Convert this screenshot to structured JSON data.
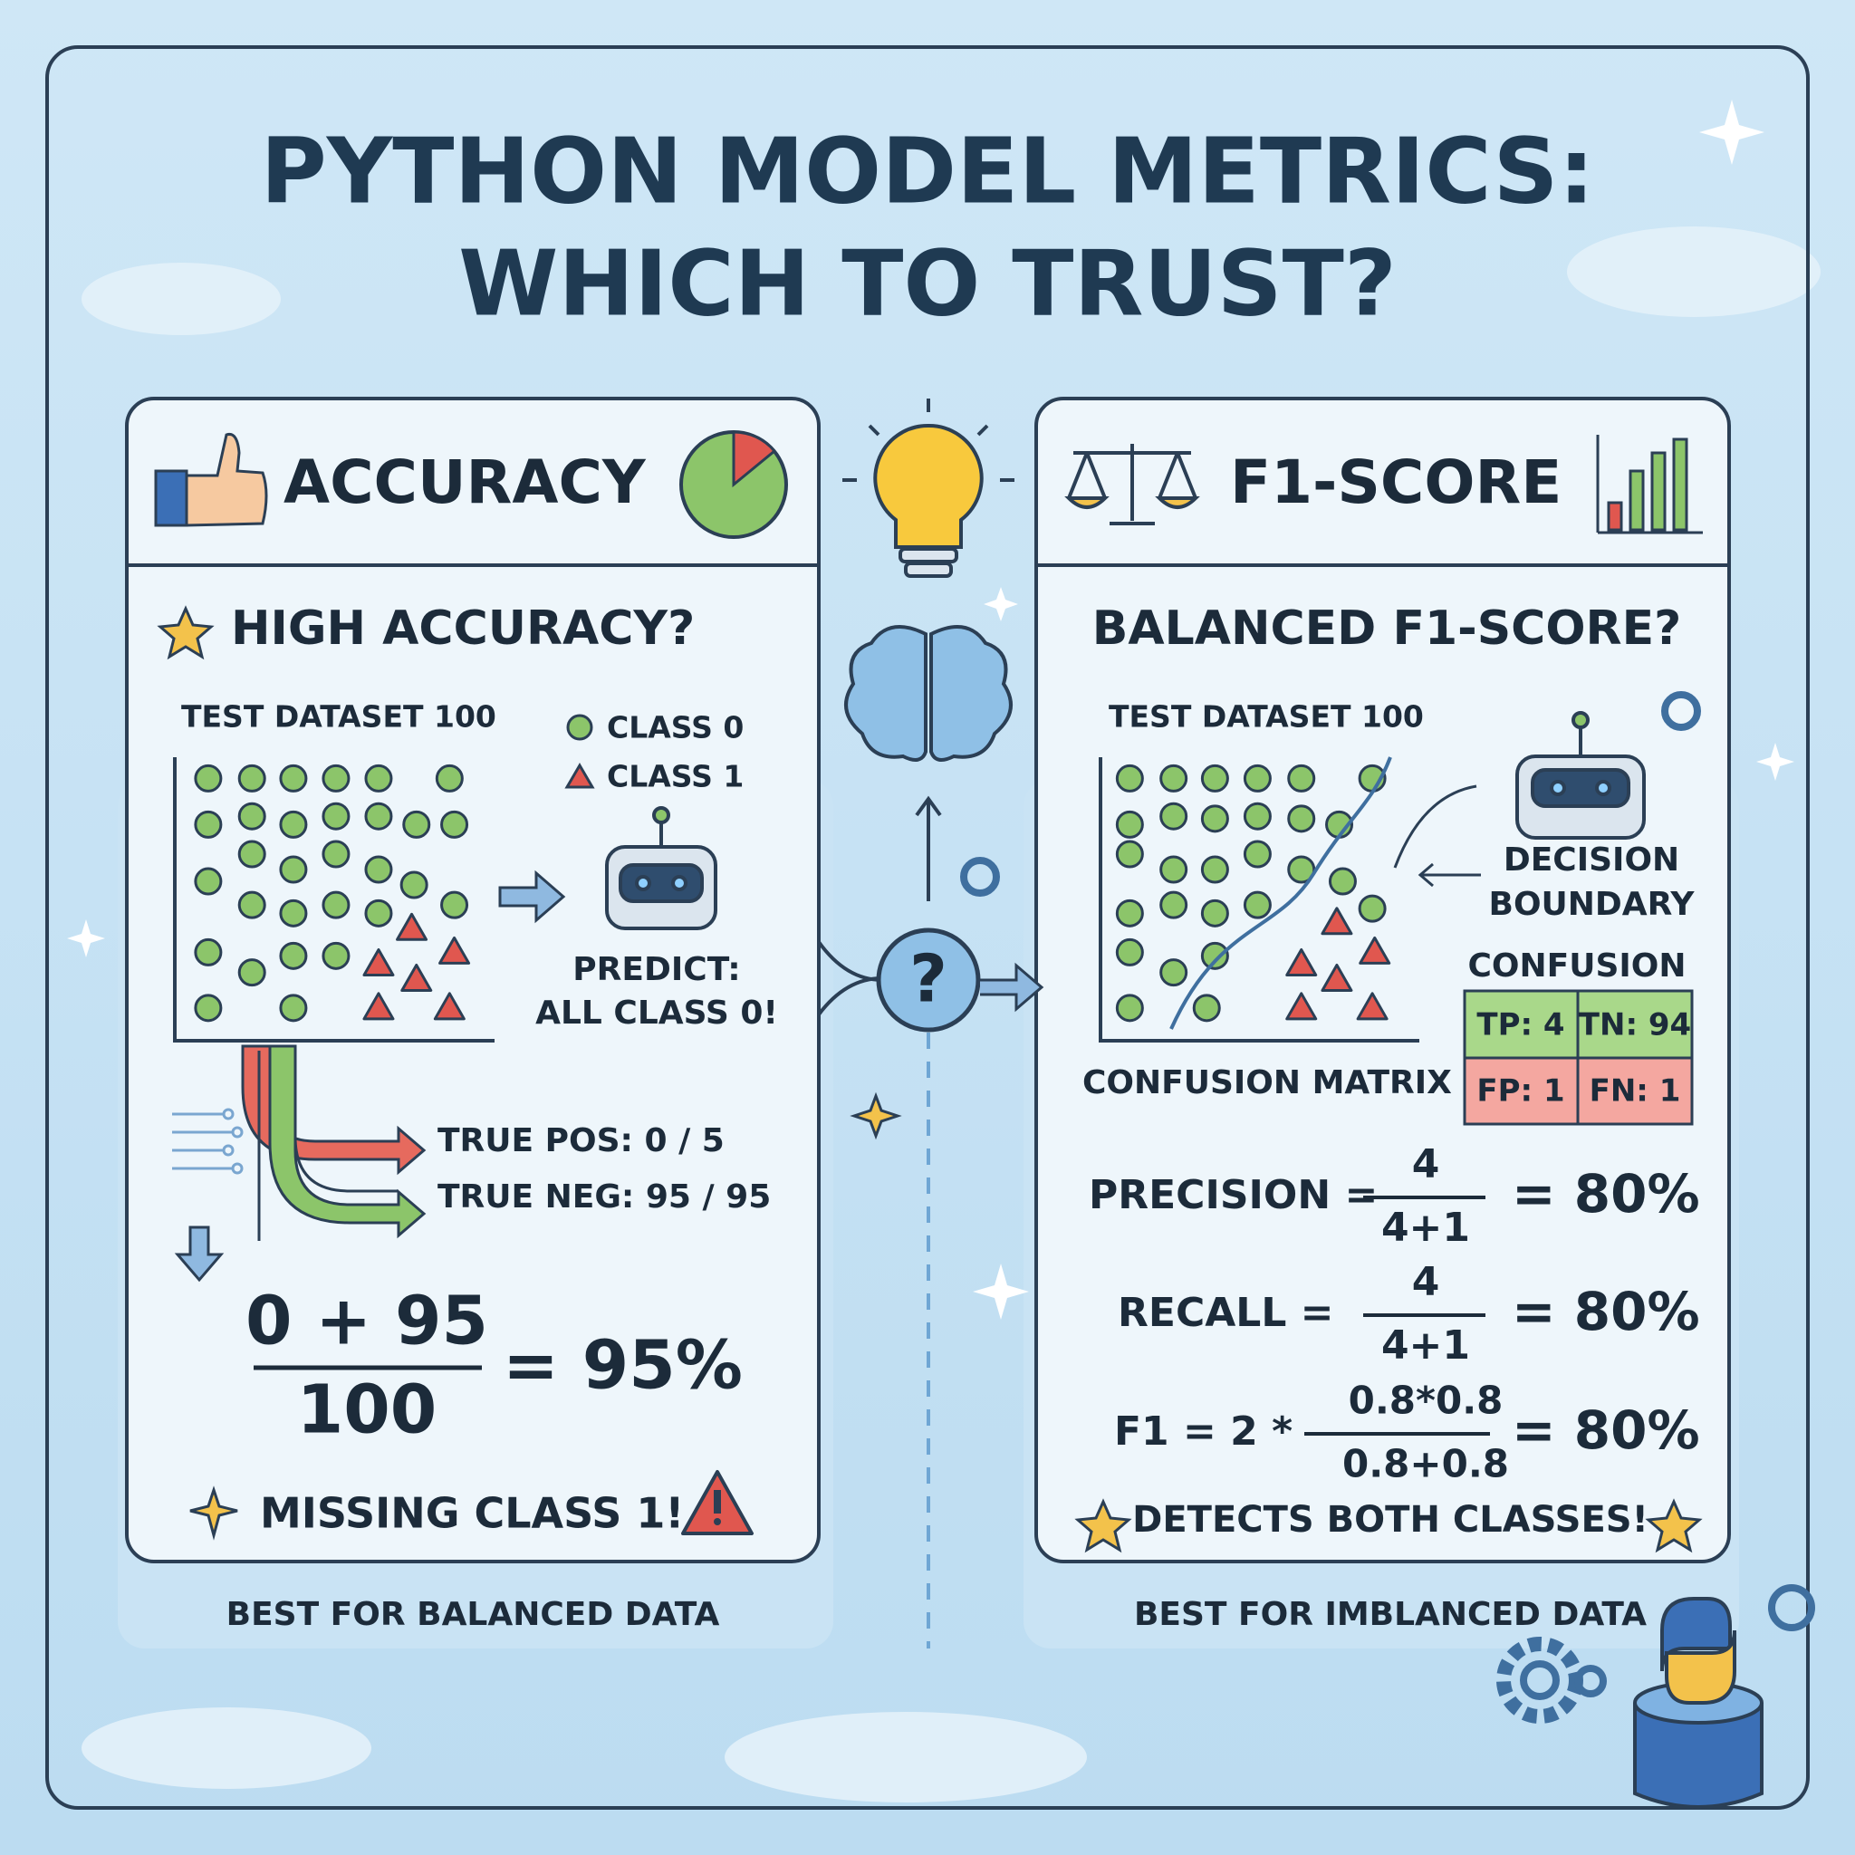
{
  "header": {
    "title_line1": "PYTHON MODEL METRICS:",
    "title_line2": "WHICH TO TRUST?"
  },
  "left_panel": {
    "heading": "ACCURACY",
    "question": "HIGH ACCURACY?",
    "dataset_label": "TEST DATASET 100",
    "legend": [
      "CLASS 0",
      "CLASS 1"
    ],
    "prediction": [
      "PREDICT:",
      "ALL CLASS 0!"
    ],
    "results": [
      "TRUE POS: 0 / 5",
      "TRUE NEG: 95 / 95"
    ],
    "formula": {
      "numerator": "0 + 95",
      "denominator": "100",
      "result": "= 95%"
    },
    "warning": "MISSING CLASS 1!",
    "footer": "BEST FOR BALANCED DATA"
  },
  "center": {
    "symbol": "?"
  },
  "right_panel": {
    "heading": "F1-SCORE",
    "question": "BALANCED F1-SCORE?",
    "dataset_label": "TEST DATASET 100",
    "boundary_label": [
      "DECISION",
      "BOUNDARY"
    ],
    "confusion_label": "CONFUSION",
    "confusion_cells": [
      [
        "TP: 4",
        "TN: 94"
      ],
      [
        "FP: 1",
        "FN: 1"
      ]
    ],
    "matrix_label": "CONFUSION MATRIX",
    "precision": {
      "label": "PRECISION =",
      "numerator": "4",
      "denominator": "4+1",
      "result": "= 80%"
    },
    "recall": {
      "label": "RECALL =",
      "numerator": "4",
      "denominator": "4+1",
      "result": "= 80%"
    },
    "f1": {
      "label": "F1 = 2 *",
      "numerator": "0.8*0.8",
      "denominator": "0.8+0.8",
      "result": "= 80%"
    },
    "success": "DETECTS BOTH CLASSES!",
    "footer": "BEST FOR IMBLANCED DATA"
  }
}
